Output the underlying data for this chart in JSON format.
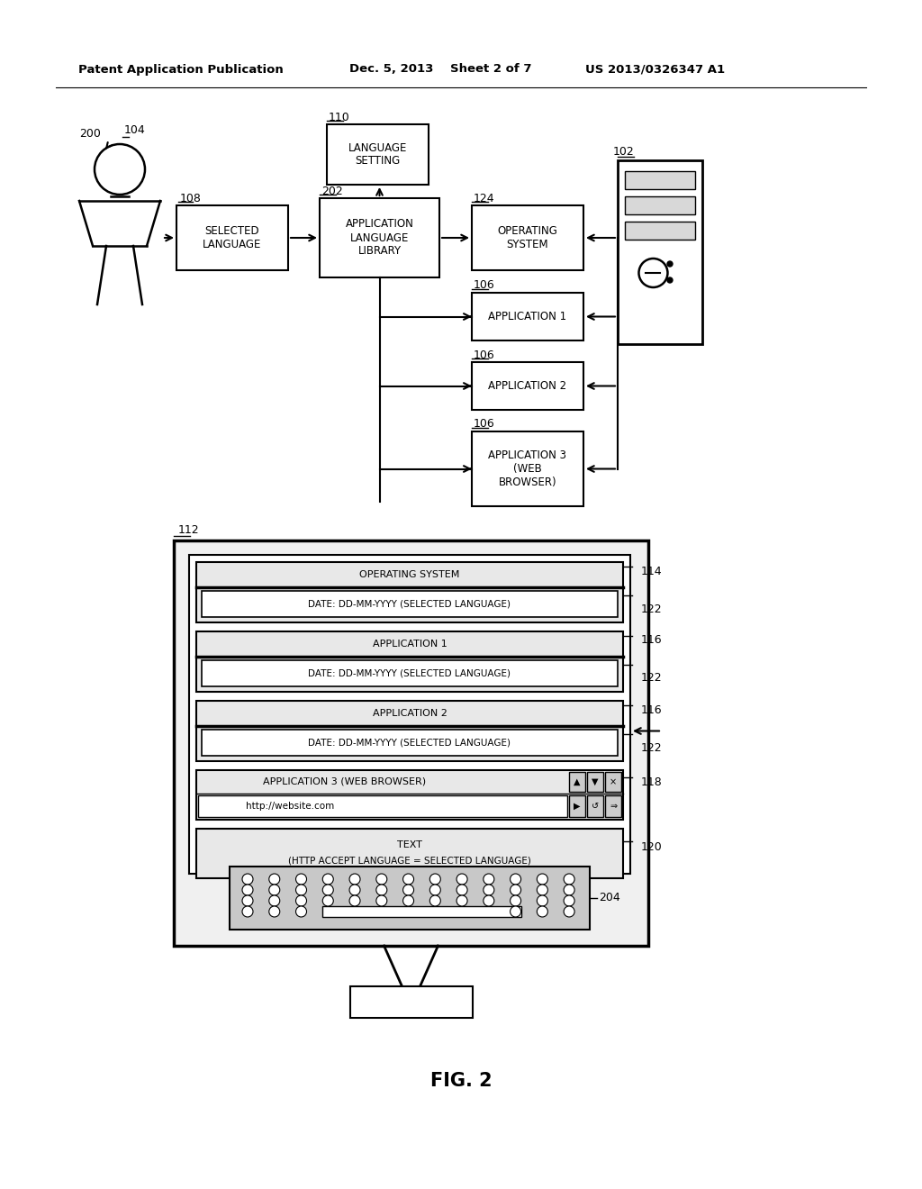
{
  "bg_color": "#ffffff",
  "header_text": "Patent Application Publication",
  "header_date": "Dec. 5, 2013",
  "header_sheet": "Sheet 2 of 7",
  "header_patent": "US 2013/0326347 A1",
  "fig_label": "FIG. 2",
  "label_200": "200",
  "label_104": "104",
  "label_108": "108",
  "label_110": "110",
  "label_202": "202",
  "label_124": "124",
  "label_102": "102",
  "label_106a": "106",
  "label_106b": "106",
  "label_106c": "106",
  "label_112": "112",
  "label_114": "114",
  "label_116a": "116",
  "label_116b": "116",
  "label_118": "118",
  "label_120": "120",
  "label_122a": "122",
  "label_122b": "122",
  "label_122c": "122",
  "label_204": "204",
  "box_selected_language": "SELECTED\nLANGUAGE",
  "box_app_lang_lib": "APPLICATION\nLANGUAGE\nLIBRARY",
  "box_lang_setting": "LANGUAGE\nSETTING",
  "box_operating_system": "OPERATING\nSYSTEM",
  "box_application1": "APPLICATION 1",
  "box_application2": "APPLICATION 2",
  "box_application3": "APPLICATION 3\n(WEB\nBROWSER)",
  "screen_os_title": "OPERATING SYSTEM",
  "screen_os_date": "DATE: DD-MM-YYYY (SELECTED LANGUAGE)",
  "screen_app1_title": "APPLICATION 1",
  "screen_app1_date": "DATE: DD-MM-YYYY (SELECTED LANGUAGE)",
  "screen_app2_title": "APPLICATION 2",
  "screen_app2_date": "DATE: DD-MM-YYYY (SELECTED LANGUAGE)",
  "screen_app3_title": "APPLICATION 3 (WEB BROWSER)",
  "screen_url": "http://website.com",
  "screen_text_title": "TEXT",
  "screen_text_body": "(HTTP ACCEPT LANGUAGE = SELECTED LANGUAGE)"
}
